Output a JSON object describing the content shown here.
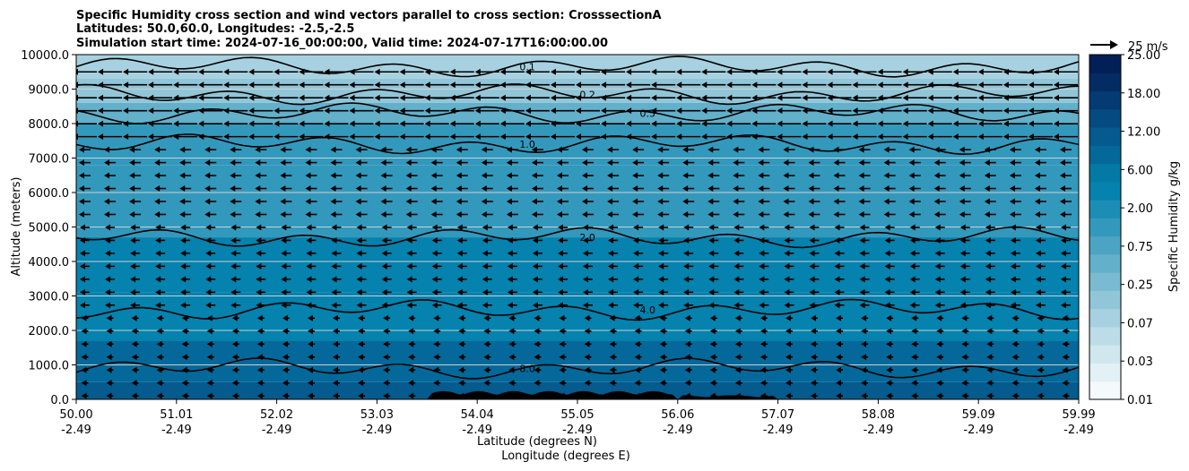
{
  "chart_data": {
    "type": "heatmap",
    "title_lines": [
      "Specific Humidity cross section and wind vectors parallel to cross section: CrosssectionA",
      "Latitudes: 50.0,60.0, Longitudes: -2.5,-2.5",
      "Simulation start time: 2024-07-16_00:00:00, Valid time: 2024-07-17T16:00:00.00"
    ],
    "ylabel": "Altitude (meters)",
    "xlabel_lines": [
      "Latitude (degrees N)",
      "Longitude (degrees E)"
    ],
    "ylim": [
      0,
      10000
    ],
    "yticks": [
      "0.0",
      "1000.0",
      "2000.0",
      "3000.0",
      "4000.0",
      "5000.0",
      "6000.0",
      "7000.0",
      "8000.0",
      "9000.0",
      "10000.0"
    ],
    "xticks_lat": [
      "50.00",
      "51.01",
      "52.02",
      "53.03",
      "54.04",
      "55.05",
      "56.06",
      "57.07",
      "58.08",
      "59.09",
      "59.99"
    ],
    "xticks_lon": [
      "-2.49",
      "-2.49",
      "-2.49",
      "-2.49",
      "-2.49",
      "-2.49",
      "-2.49",
      "-2.49",
      "-2.49",
      "-2.49",
      "-2.49"
    ],
    "grid": "horizontal",
    "colorbar": {
      "label": "Specific Humidity g/kg",
      "ticks": [
        "0.01",
        "0.03",
        "0.07",
        "0.25",
        "0.75",
        "2.00",
        "6.00",
        "12.00",
        "18.00",
        "25.00"
      ],
      "levels": [
        0.01,
        0.02,
        0.03,
        0.05,
        0.07,
        0.1,
        0.25,
        0.5,
        0.75,
        1,
        2,
        3,
        6,
        8,
        12,
        15,
        18,
        22,
        25
      ],
      "colors": [
        "#f4f9fb",
        "#e3f0f5",
        "#d0e7ee",
        "#bcdde8",
        "#a7d1e0",
        "#91c6d9",
        "#7bbbd1",
        "#63b0ca",
        "#4ca4c2",
        "#3399bc",
        "#1c8eb5",
        "#0582ad",
        "#037aa5",
        "#04699a",
        "#055a8e",
        "#054b82",
        "#043b72",
        "#032c63",
        "#021f56"
      ]
    },
    "wind_reference": {
      "label": "25 m/s",
      "value": 25
    },
    "contour_labels": [
      "0.1",
      "0.2",
      "0.5",
      "1.0",
      "2.0",
      "4.0",
      "8.0"
    ],
    "contour_levels": [
      0.1,
      0.2,
      0.5,
      1.0,
      2.0,
      4.0,
      8.0
    ],
    "humidity_bands": [
      {
        "altitude_top": 500,
        "value": 12
      },
      {
        "altitude_top": 1700,
        "value": 8
      },
      {
        "altitude_top": 3100,
        "value": 5
      },
      {
        "altitude_top": 4700,
        "value": 3
      },
      {
        "altitude_top": 6800,
        "value": 1.5
      },
      {
        "altitude_top": 8000,
        "value": 1.0
      },
      {
        "altitude_top": 8600,
        "value": 0.5
      },
      {
        "altitude_top": 9300,
        "value": 0.2
      },
      {
        "altitude_top": 10000,
        "value": 0.08
      }
    ]
  }
}
